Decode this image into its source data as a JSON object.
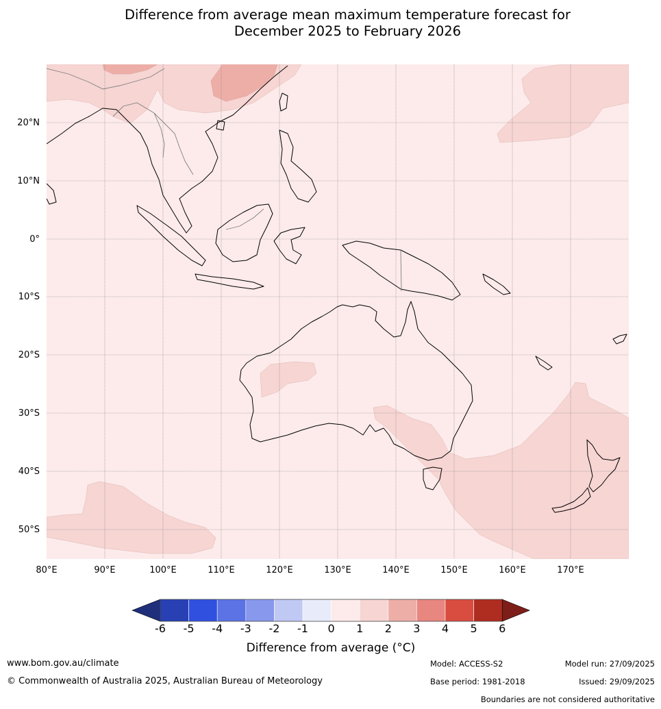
{
  "title": {
    "line1": "Difference from average mean maximum temperature forecast for",
    "line2": "December 2025 to February 2026"
  },
  "map": {
    "region": "Maritime Continent, Australia and South-West Pacific",
    "lon_labels": [
      "80°E",
      "90°E",
      "100°E",
      "110°E",
      "120°E",
      "130°E",
      "140°E",
      "150°E",
      "160°E",
      "170°E"
    ],
    "lat_labels": [
      "20°N",
      "10°N",
      "0°",
      "10°S",
      "20°S",
      "30°S",
      "40°S",
      "50°S"
    ],
    "background_anomaly_band": "0 to 1",
    "background_color": "#fcebea",
    "features": [
      {
        "name": "southern-china-warm-patch",
        "band": "2 to 3",
        "color": "#eeaea8"
      },
      {
        "name": "north-pacific-warm-patch",
        "band": "1 to 2",
        "color": "#f6d5d3"
      },
      {
        "name": "western-australia-warm-patch",
        "band": "1 to 2",
        "color": "#f6d5d3"
      },
      {
        "name": "tasman-sea-warm-region",
        "band": "1 to 2",
        "color": "#f6d5d3"
      },
      {
        "name": "southern-ocean-warm-patch",
        "band": "1 to 2",
        "color": "#f6d5d3"
      }
    ]
  },
  "colorbar": {
    "ticks": [
      "-6",
      "-5",
      "-4",
      "-3",
      "-2",
      "-1",
      "0",
      "1",
      "2",
      "3",
      "4",
      "5",
      "6"
    ],
    "colors": [
      "#1f2f7c",
      "#2840b4",
      "#3050e0",
      "#5b73e4",
      "#8898ec",
      "#c0c8f4",
      "#e8ebfa",
      "#fcebea",
      "#f6d5d3",
      "#eeaea8",
      "#e88680",
      "#d94c40",
      "#ae2c20",
      "#7e1e18"
    ],
    "label": "Difference from average (°C)"
  },
  "footer": {
    "url": "www.bom.gov.au/climate",
    "copyright": "© Commonwealth of Australia 2025, Australian Bureau of Meteorology",
    "model": "Model: ACCESS-S2",
    "base_period": "Base period: 1981-2018",
    "model_run": "Model run: 27/09/2025",
    "issued": "Issued: 29/09/2025",
    "boundaries_note": "Boundaries are not considered authoritative"
  }
}
